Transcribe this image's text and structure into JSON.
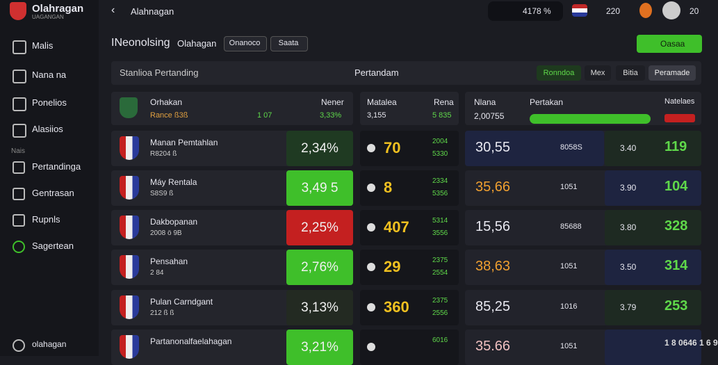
{
  "brand": {
    "name": "Olahragan",
    "tagline": "UAGANGAN"
  },
  "topbar": {
    "title": "Alahnagan",
    "balance": "4178 %",
    "count": "220",
    "points": "20"
  },
  "sidebar": {
    "items": [
      "Malis",
      "Nana na",
      "Ponelios",
      "Alasiios"
    ],
    "section": "Nais",
    "items2": [
      "Pertandinga",
      "Gentrasan",
      "Rupnls",
      "Sagertean"
    ],
    "footer": "olahagan"
  },
  "header": {
    "title": "INeonolsing",
    "subtitle": "Olahagan",
    "tabs": [
      "Onanoco",
      "Saata"
    ],
    "action": "Oasaa"
  },
  "filter": {
    "label": "Stanlioa Pertanding",
    "dropdown": "Pertandam",
    "buttons": [
      "Ronndoa",
      "Mex",
      "Bitia",
      "Peramade"
    ]
  },
  "columns": {
    "left": {
      "name": "Orhakan",
      "sub": "Rance ß3ß",
      "count": "1 07",
      "head": "Nener",
      "pct": "3,33%"
    },
    "middle": {
      "name": "Matalea",
      "sub": "3,155",
      "head": "Rena",
      "value": "5 835"
    },
    "right": {
      "name": "Nlana",
      "sub": "2,00755",
      "head": "Pertakan",
      "end": "Natelaes"
    }
  },
  "rows": [
    {
      "name": "Manan Pemtahlan",
      "sub": "R8204 ß",
      "pct": "2,34%",
      "pct_color": "#1f3a22",
      "score": "70",
      "odds": [
        "2004",
        "5330"
      ],
      "value": "30,55",
      "value_color": "#e8e8f0",
      "code": "8058S",
      "num": "3.40",
      "big": "119"
    },
    {
      "name": "Máy Rentala",
      "sub": "S8S9 ß",
      "pct": "3,49 5",
      "pct_color": "#3fbf2a",
      "score": "8",
      "odds": [
        "2334",
        "5356"
      ],
      "value": "35,66",
      "value_color": "#f0a030",
      "code": "1051",
      "num": "3.90",
      "big": "104"
    },
    {
      "name": "Dakbopanan",
      "sub": "2008 ö 9B",
      "pct": "2,25%",
      "pct_color": "#c42020",
      "score": "407",
      "odds": [
        "5314",
        "3556"
      ],
      "value": "15,56",
      "value_color": "#e8e8f0",
      "code": "85688",
      "num": "3.80",
      "big": "328"
    },
    {
      "name": "Pensahan",
      "sub": "2 84",
      "pct": "2,76%",
      "pct_color": "#3fbf2a",
      "score": "29",
      "odds": [
        "2375",
        "2554"
      ],
      "value": "38,63",
      "value_color": "#f0a030",
      "code": "1051",
      "num": "3.50",
      "big": "314"
    },
    {
      "name": "Pulan Carndgant",
      "sub": "212 ß ß",
      "pct": "3,13%",
      "pct_color": "#232a22",
      "score": "360",
      "odds": [
        "2375",
        "2556"
      ],
      "value": "85,25",
      "value_color": "#e8e8f0",
      "code": "1016",
      "num": "3.79",
      "big": "253"
    },
    {
      "name": "Partanonalfaelahagan",
      "sub": "",
      "pct": "3,21%",
      "pct_color": "#3fbf2a",
      "score": "",
      "odds": [
        "6016",
        ""
      ],
      "value": "35.66",
      "value_color": "#f0c0c0",
      "code": "1051",
      "num": "",
      "big": "1 8 0646 1 6 9"
    }
  ]
}
